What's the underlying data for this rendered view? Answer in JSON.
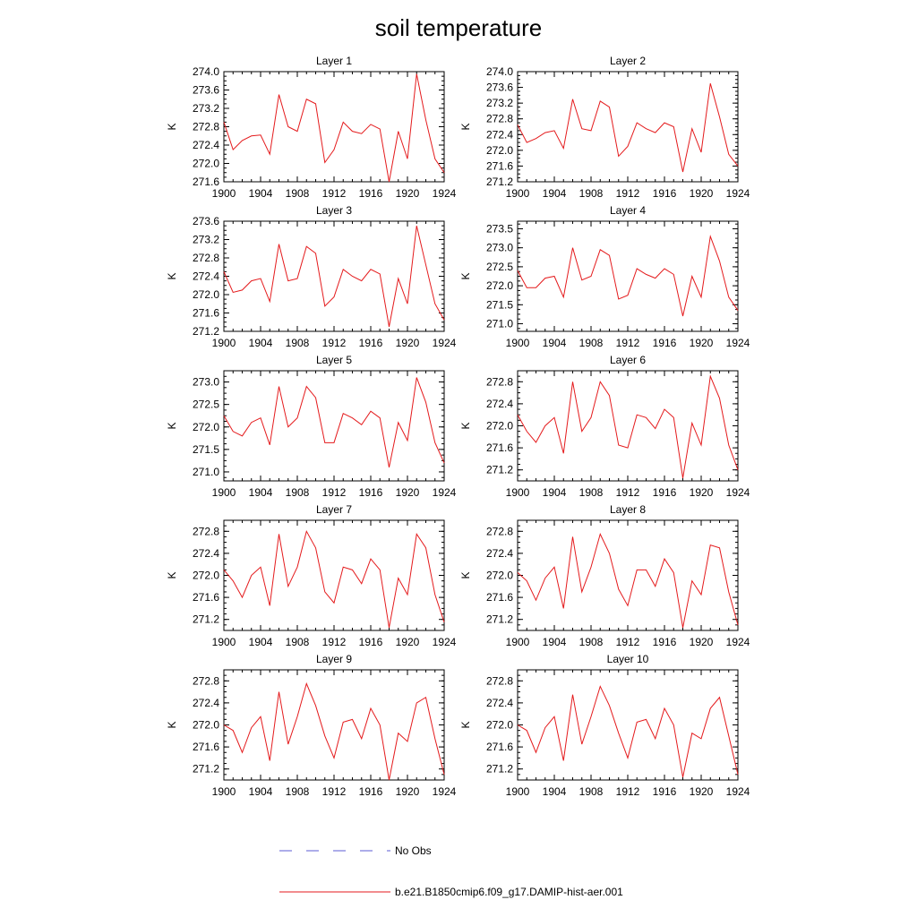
{
  "title": "soil temperature",
  "legend": [
    {
      "label": "No Obs",
      "color": "#5b5bd6",
      "style": "dashed"
    },
    {
      "label": "b.e21.B1850cmip6.f09_g17.DAMIP-hist-aer.001",
      "color": "#e41a1c",
      "style": "solid"
    }
  ],
  "chart_data": [
    {
      "type": "line",
      "title": "Layer 1",
      "ylabel": "K",
      "xlim": [
        1900,
        1924
      ],
      "xticks": [
        1900,
        1904,
        1908,
        1912,
        1916,
        1920,
        1924
      ],
      "ylim": [
        271.6,
        274.0
      ],
      "yticks": [
        271.6,
        272.0,
        272.4,
        272.8,
        273.2,
        273.6,
        274.0
      ],
      "ytick_decimals": 1,
      "series": [
        {
          "color": "#e41a1c",
          "x": [
            1900,
            1901,
            1902,
            1903,
            1904,
            1905,
            1906,
            1907,
            1908,
            1909,
            1910,
            1911,
            1912,
            1913,
            1914,
            1915,
            1916,
            1917,
            1918,
            1919,
            1920,
            1921,
            1922,
            1923,
            1924
          ],
          "y": [
            272.9,
            272.3,
            272.5,
            272.6,
            272.62,
            272.2,
            273.5,
            272.8,
            272.7,
            273.4,
            273.3,
            272.02,
            272.3,
            272.9,
            272.7,
            272.65,
            272.85,
            272.75,
            271.6,
            272.7,
            272.1,
            273.95,
            272.95,
            272.1,
            271.8
          ]
        }
      ]
    },
    {
      "type": "line",
      "title": "Layer 2",
      "ylabel": "K",
      "xlim": [
        1900,
        1924
      ],
      "xticks": [
        1900,
        1904,
        1908,
        1912,
        1916,
        1920,
        1924
      ],
      "ylim": [
        271.2,
        274.0
      ],
      "yticks": [
        271.2,
        271.6,
        272.0,
        272.4,
        272.8,
        273.2,
        273.6,
        274.0
      ],
      "ytick_decimals": 1,
      "series": [
        {
          "color": "#e41a1c",
          "x": [
            1900,
            1901,
            1902,
            1903,
            1904,
            1905,
            1906,
            1907,
            1908,
            1909,
            1910,
            1911,
            1912,
            1913,
            1914,
            1915,
            1916,
            1917,
            1918,
            1919,
            1920,
            1921,
            1922,
            1923,
            1924
          ],
          "y": [
            272.65,
            272.2,
            272.3,
            272.45,
            272.5,
            272.05,
            273.3,
            272.55,
            272.5,
            273.25,
            273.1,
            271.85,
            272.1,
            272.7,
            272.55,
            272.45,
            272.7,
            272.6,
            271.45,
            272.55,
            271.95,
            273.7,
            272.85,
            271.9,
            271.6
          ]
        }
      ]
    },
    {
      "type": "line",
      "title": "Layer 3",
      "ylabel": "K",
      "xlim": [
        1900,
        1924
      ],
      "xticks": [
        1900,
        1904,
        1908,
        1912,
        1916,
        1920,
        1924
      ],
      "ylim": [
        271.2,
        273.6
      ],
      "yticks": [
        271.2,
        271.6,
        272.0,
        272.4,
        272.8,
        273.2,
        273.6
      ],
      "ytick_decimals": 1,
      "series": [
        {
          "color": "#e41a1c",
          "x": [
            1900,
            1901,
            1902,
            1903,
            1904,
            1905,
            1906,
            1907,
            1908,
            1909,
            1910,
            1911,
            1912,
            1913,
            1914,
            1915,
            1916,
            1917,
            1918,
            1919,
            1920,
            1921,
            1922,
            1923,
            1924
          ],
          "y": [
            272.5,
            272.05,
            272.1,
            272.3,
            272.35,
            271.85,
            273.1,
            272.3,
            272.35,
            273.05,
            272.9,
            271.75,
            271.95,
            272.55,
            272.4,
            272.3,
            272.55,
            272.45,
            271.3,
            272.35,
            271.8,
            273.5,
            272.65,
            271.8,
            271.45
          ]
        }
      ]
    },
    {
      "type": "line",
      "title": "Layer 4",
      "ylabel": "K",
      "xlim": [
        1900,
        1924
      ],
      "xticks": [
        1900,
        1904,
        1908,
        1912,
        1916,
        1920,
        1924
      ],
      "ylim": [
        270.8,
        273.7
      ],
      "yticks": [
        271.0,
        271.5,
        272.0,
        272.5,
        273.0,
        273.5
      ],
      "ytick_decimals": 1,
      "series": [
        {
          "color": "#e41a1c",
          "x": [
            1900,
            1901,
            1902,
            1903,
            1904,
            1905,
            1906,
            1907,
            1908,
            1909,
            1910,
            1911,
            1912,
            1913,
            1914,
            1915,
            1916,
            1917,
            1918,
            1919,
            1920,
            1921,
            1922,
            1923,
            1924
          ],
          "y": [
            272.4,
            271.95,
            271.95,
            272.2,
            272.25,
            271.7,
            273.0,
            272.15,
            272.25,
            272.95,
            272.8,
            271.65,
            271.75,
            272.45,
            272.3,
            272.2,
            272.45,
            272.3,
            271.2,
            272.25,
            271.7,
            273.3,
            272.65,
            271.7,
            271.35
          ]
        }
      ]
    },
    {
      "type": "line",
      "title": "Layer 5",
      "ylabel": "K",
      "xlim": [
        1900,
        1924
      ],
      "xticks": [
        1900,
        1904,
        1908,
        1912,
        1916,
        1920,
        1924
      ],
      "ylim": [
        270.8,
        273.25
      ],
      "yticks": [
        271.0,
        271.5,
        272.0,
        272.5,
        273.0
      ],
      "ytick_decimals": 1,
      "series": [
        {
          "color": "#e41a1c",
          "x": [
            1900,
            1901,
            1902,
            1903,
            1904,
            1905,
            1906,
            1907,
            1908,
            1909,
            1910,
            1911,
            1912,
            1913,
            1914,
            1915,
            1916,
            1917,
            1918,
            1919,
            1920,
            1921,
            1922,
            1923,
            1924
          ],
          "y": [
            272.25,
            271.9,
            271.8,
            272.1,
            272.2,
            271.6,
            272.9,
            272.0,
            272.2,
            272.9,
            272.65,
            271.65,
            271.65,
            272.3,
            272.2,
            272.05,
            272.35,
            272.2,
            271.1,
            272.1,
            271.7,
            273.1,
            272.55,
            271.65,
            271.2
          ]
        }
      ]
    },
    {
      "type": "line",
      "title": "Layer 6",
      "ylabel": "K",
      "xlim": [
        1900,
        1924
      ],
      "xticks": [
        1900,
        1904,
        1908,
        1912,
        1916,
        1920,
        1924
      ],
      "ylim": [
        271.0,
        273.0
      ],
      "yticks": [
        271.2,
        271.6,
        272.0,
        272.4,
        272.8
      ],
      "ytick_decimals": 1,
      "series": [
        {
          "color": "#e41a1c",
          "x": [
            1900,
            1901,
            1902,
            1903,
            1904,
            1905,
            1906,
            1907,
            1908,
            1909,
            1910,
            1911,
            1912,
            1913,
            1914,
            1915,
            1916,
            1917,
            1918,
            1919,
            1920,
            1921,
            1922,
            1923,
            1924
          ],
          "y": [
            272.2,
            271.9,
            271.7,
            272.0,
            272.15,
            271.5,
            272.8,
            271.9,
            272.15,
            272.8,
            272.55,
            271.65,
            271.6,
            272.2,
            272.15,
            271.95,
            272.3,
            272.15,
            271.05,
            272.05,
            271.65,
            272.9,
            272.5,
            271.65,
            271.2
          ]
        }
      ]
    },
    {
      "type": "line",
      "title": "Layer 7",
      "ylabel": "K",
      "xlim": [
        1900,
        1924
      ],
      "xticks": [
        1900,
        1904,
        1908,
        1912,
        1916,
        1920,
        1924
      ],
      "ylim": [
        271.0,
        273.0
      ],
      "yticks": [
        271.2,
        271.6,
        272.0,
        272.4,
        272.8
      ],
      "ytick_decimals": 1,
      "series": [
        {
          "color": "#e41a1c",
          "x": [
            1900,
            1901,
            1902,
            1903,
            1904,
            1905,
            1906,
            1907,
            1908,
            1909,
            1910,
            1911,
            1912,
            1913,
            1914,
            1915,
            1916,
            1917,
            1918,
            1919,
            1920,
            1921,
            1922,
            1923,
            1924
          ],
          "y": [
            272.1,
            271.9,
            271.6,
            272.0,
            272.15,
            271.45,
            272.75,
            271.8,
            272.15,
            272.8,
            272.5,
            271.7,
            271.5,
            272.15,
            272.1,
            271.85,
            272.3,
            272.1,
            271.05,
            271.95,
            271.65,
            272.75,
            272.5,
            271.65,
            271.15
          ]
        }
      ]
    },
    {
      "type": "line",
      "title": "Layer 8",
      "ylabel": "K",
      "xlim": [
        1900,
        1924
      ],
      "xticks": [
        1900,
        1904,
        1908,
        1912,
        1916,
        1920,
        1924
      ],
      "ylim": [
        271.0,
        273.0
      ],
      "yticks": [
        271.2,
        271.6,
        272.0,
        272.4,
        272.8
      ],
      "ytick_decimals": 1,
      "series": [
        {
          "color": "#e41a1c",
          "x": [
            1900,
            1901,
            1902,
            1903,
            1904,
            1905,
            1906,
            1907,
            1908,
            1909,
            1910,
            1911,
            1912,
            1913,
            1914,
            1915,
            1916,
            1917,
            1918,
            1919,
            1920,
            1921,
            1922,
            1923,
            1924
          ],
          "y": [
            272.05,
            271.9,
            271.55,
            271.95,
            272.15,
            271.4,
            272.7,
            271.7,
            272.15,
            272.75,
            272.4,
            271.75,
            271.45,
            272.1,
            272.1,
            271.8,
            272.3,
            272.05,
            271.05,
            271.9,
            271.65,
            272.55,
            272.5,
            271.7,
            271.1
          ]
        }
      ]
    },
    {
      "type": "line",
      "title": "Layer 9",
      "ylabel": "K",
      "xlim": [
        1900,
        1924
      ],
      "xticks": [
        1900,
        1904,
        1908,
        1912,
        1916,
        1920,
        1924
      ],
      "ylim": [
        271.0,
        273.0
      ],
      "yticks": [
        271.2,
        271.6,
        272.0,
        272.4,
        272.8
      ],
      "ytick_decimals": 1,
      "series": [
        {
          "color": "#e41a1c",
          "x": [
            1900,
            1901,
            1902,
            1903,
            1904,
            1905,
            1906,
            1907,
            1908,
            1909,
            1910,
            1911,
            1912,
            1913,
            1914,
            1915,
            1916,
            1917,
            1918,
            1919,
            1920,
            1921,
            1922,
            1923,
            1924
          ],
          "y": [
            272.0,
            271.9,
            271.5,
            271.95,
            272.15,
            271.35,
            272.6,
            271.65,
            272.15,
            272.75,
            272.35,
            271.8,
            271.4,
            272.05,
            272.1,
            271.75,
            272.3,
            272.0,
            271.0,
            271.85,
            271.7,
            272.4,
            272.5,
            271.75,
            271.1
          ]
        }
      ]
    },
    {
      "type": "line",
      "title": "Layer 10",
      "ylabel": "K",
      "xlim": [
        1900,
        1924
      ],
      "xticks": [
        1900,
        1904,
        1908,
        1912,
        1916,
        1920,
        1924
      ],
      "ylim": [
        271.0,
        273.0
      ],
      "yticks": [
        271.2,
        271.6,
        272.0,
        272.4,
        272.8
      ],
      "ytick_decimals": 1,
      "series": [
        {
          "color": "#e41a1c",
          "x": [
            1900,
            1901,
            1902,
            1903,
            1904,
            1905,
            1906,
            1907,
            1908,
            1909,
            1910,
            1911,
            1912,
            1913,
            1914,
            1915,
            1916,
            1917,
            1918,
            1919,
            1920,
            1921,
            1922,
            1923,
            1924
          ],
          "y": [
            272.0,
            271.9,
            271.5,
            271.95,
            272.15,
            271.35,
            272.55,
            271.65,
            272.15,
            272.7,
            272.35,
            271.85,
            271.4,
            272.05,
            272.1,
            271.75,
            272.3,
            272.0,
            271.05,
            271.85,
            271.75,
            272.3,
            272.5,
            271.8,
            271.1
          ]
        }
      ]
    }
  ]
}
